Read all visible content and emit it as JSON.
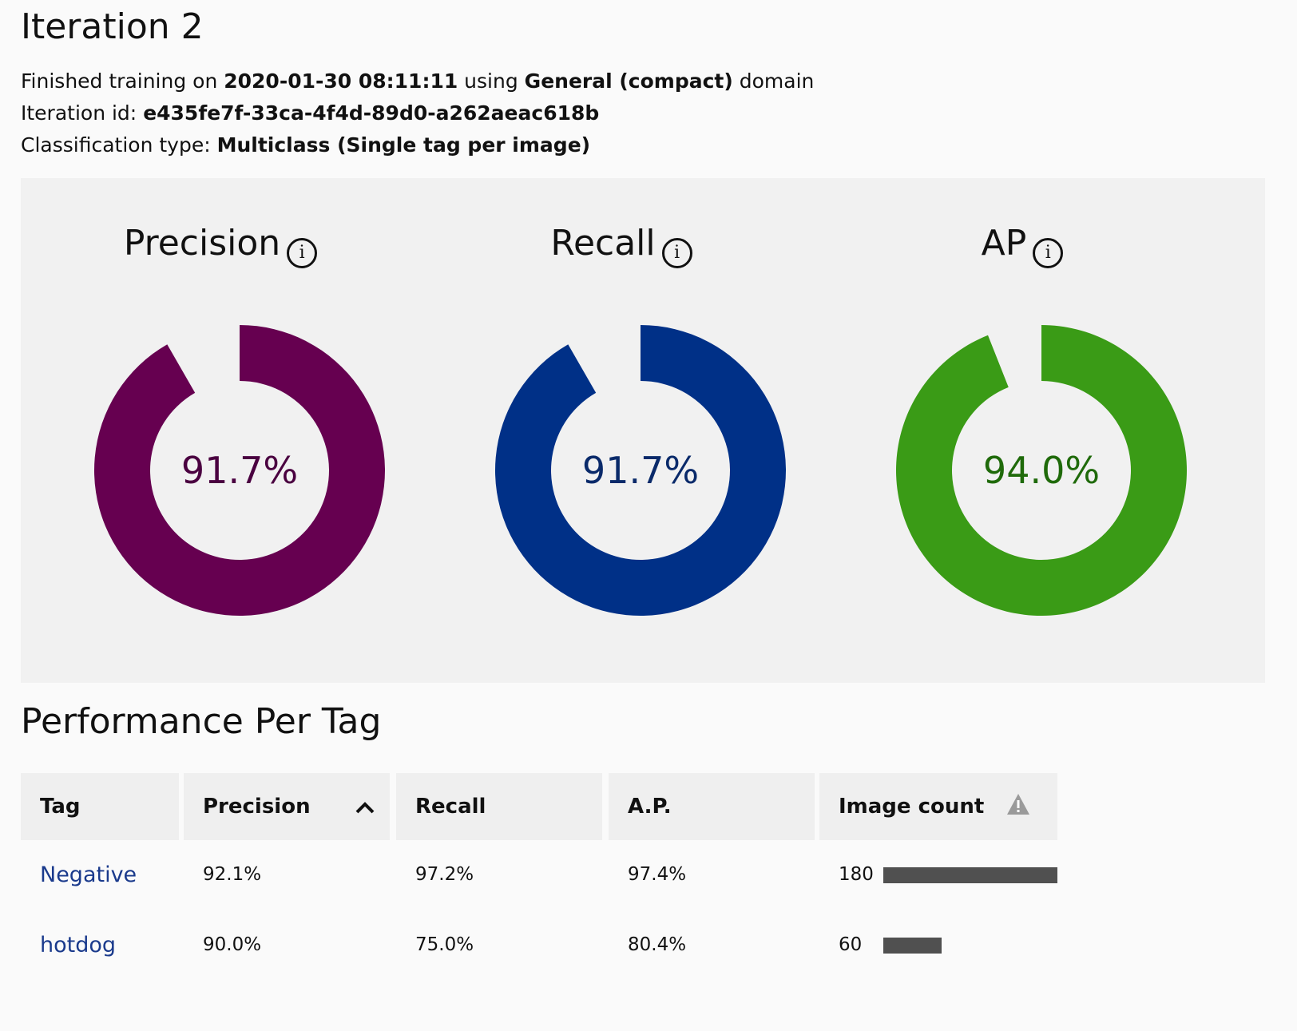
{
  "header": {
    "title": "Iteration 2",
    "finished_prefix": "Finished training on ",
    "finished_date": "2020-01-30 08:11:11",
    "finished_mid": " using ",
    "domain_name": "General (compact)",
    "finished_suffix": " domain",
    "iteration_id_label": "Iteration id: ",
    "iteration_id": "e435fe7f-33ca-4f4d-89d0-a262aeac618b",
    "classification_label": "Classification type: ",
    "classification_value": "Multiclass (Single tag per image)"
  },
  "metrics": [
    {
      "label": "Precision",
      "value_text": "91.7%",
      "value": 0.917,
      "color": "#660050",
      "text_color": "#4a0040",
      "icon": "info-icon"
    },
    {
      "label": "Recall",
      "value_text": "91.7%",
      "value": 0.917,
      "color": "#003087",
      "text_color": "#0a2a6a",
      "icon": "info-icon"
    },
    {
      "label": "AP",
      "value_text": "94.0%",
      "value": 0.94,
      "color": "#3a9b16",
      "text_color": "#1f6a0a",
      "icon": "info-icon"
    }
  ],
  "performance": {
    "title": "Performance Per Tag",
    "columns": {
      "tag": "Tag",
      "precision": "Precision",
      "recall": "Recall",
      "ap": "A.P.",
      "image_count": "Image count"
    },
    "sort_icon": "chevron-up-icon",
    "warning_icon": "warning-icon",
    "rows": [
      {
        "tag": "Negative",
        "precision": "92.1%",
        "recall": "97.2%",
        "ap": "97.4%",
        "image_count": "180",
        "count_value": 180
      },
      {
        "tag": "hotdog",
        "precision": "90.0%",
        "recall": "75.0%",
        "ap": "80.4%",
        "image_count": "60",
        "count_value": 60
      }
    ],
    "max_count": 180,
    "link_color": "#1a3a8c",
    "bar_color": "#505050"
  }
}
